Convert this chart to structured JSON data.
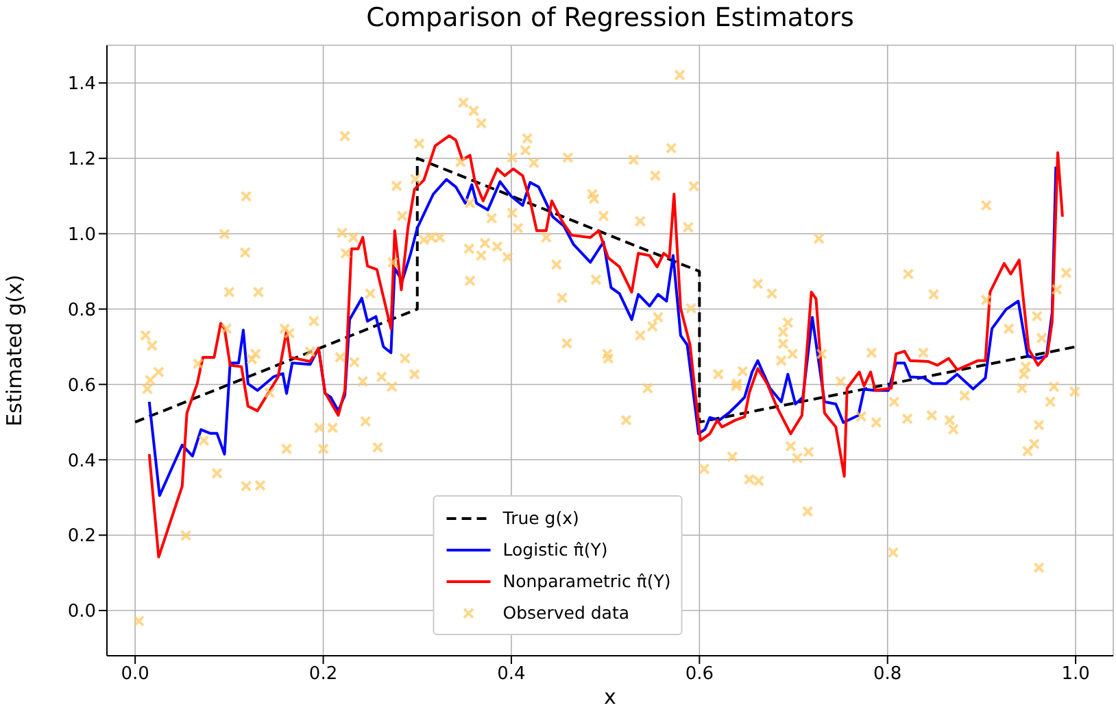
{
  "chart_data": {
    "type": "line",
    "title": "Comparison of Regression Estimators",
    "xlabel": "x",
    "ylabel": "Estimated g(x)",
    "xlim": [
      -0.03,
      1.04
    ],
    "ylim": [
      -0.12,
      1.5
    ],
    "xticks": [
      {
        "value": 0,
        "label": "0.0"
      },
      0.2,
      0.4,
      0.6,
      0.8,
      {
        "value": 1,
        "label": "1.0"
      }
    ],
    "yticks": [
      {
        "value": 0,
        "label": "0.0"
      },
      0.2,
      0.4,
      0.6,
      0.8,
      {
        "value": 1,
        "label": "1.0"
      },
      1.2,
      1.4
    ],
    "grid": true,
    "legend": "bottom",
    "series": [
      {
        "name": "True g(x)",
        "color": "#000000",
        "line_style": "dashed",
        "marker": "none",
        "x": [
          0,
          0.3,
          0.3,
          0.6,
          0.6,
          1.0
        ],
        "values": [
          0.5,
          0.8,
          1.2,
          0.9,
          0.5,
          0.7
        ]
      },
      {
        "name": "Logistic π̂(Y)",
        "color": "#0000ff",
        "line_style": "solid",
        "marker": "none",
        "x": [
          0.015,
          0.026,
          0.05,
          0.061,
          0.07,
          0.08,
          0.087,
          0.095,
          0.101,
          0.11,
          0.115,
          0.12,
          0.13,
          0.147,
          0.157,
          0.161,
          0.167,
          0.186,
          0.195,
          0.202,
          0.208,
          0.216,
          0.223,
          0.228,
          0.241,
          0.247,
          0.256,
          0.264,
          0.272,
          0.276,
          0.284,
          0.293,
          0.3,
          0.317,
          0.331,
          0.341,
          0.351,
          0.358,
          0.363,
          0.375,
          0.388,
          0.4,
          0.412,
          0.42,
          0.429,
          0.444,
          0.456,
          0.466,
          0.484,
          0.498,
          0.506,
          0.515,
          0.528,
          0.535,
          0.547,
          0.556,
          0.565,
          0.572,
          0.58,
          0.587,
          0.599,
          0.606,
          0.611,
          0.621,
          0.631,
          0.641,
          0.648,
          0.656,
          0.662,
          0.675,
          0.687,
          0.694,
          0.702,
          0.71,
          0.72,
          0.733,
          0.745,
          0.753,
          0.769,
          0.775,
          0.787,
          0.801,
          0.809,
          0.818,
          0.824,
          0.838,
          0.848,
          0.862,
          0.874,
          0.891,
          0.904,
          0.911,
          0.926,
          0.939,
          0.949,
          0.96,
          0.969,
          0.975,
          0.979
        ],
        "values": [
          0.554,
          0.305,
          0.439,
          0.41,
          0.48,
          0.47,
          0.47,
          0.415,
          0.657,
          0.657,
          0.744,
          0.602,
          0.584,
          0.62,
          0.629,
          0.576,
          0.657,
          0.653,
          0.696,
          0.576,
          0.566,
          0.53,
          0.572,
          0.772,
          0.829,
          0.768,
          0.78,
          0.7,
          0.684,
          0.908,
          0.875,
          0.948,
          1.015,
          1.105,
          1.144,
          1.124,
          1.081,
          1.13,
          1.081,
          1.063,
          1.138,
          1.099,
          1.075,
          1.136,
          1.124,
          1.045,
          1.02,
          0.972,
          0.924,
          0.978,
          0.857,
          0.841,
          0.772,
          0.839,
          0.808,
          0.839,
          0.821,
          0.942,
          0.73,
          0.705,
          0.469,
          0.481,
          0.512,
          0.505,
          0.524,
          0.548,
          0.566,
          0.633,
          0.663,
          0.59,
          0.554,
          0.627,
          0.548,
          0.566,
          0.778,
          0.554,
          0.548,
          0.499,
          0.518,
          0.587,
          0.584,
          0.584,
          0.657,
          0.657,
          0.62,
          0.618,
          0.602,
          0.602,
          0.627,
          0.588,
          0.617,
          0.748,
          0.799,
          0.821,
          0.675,
          0.669,
          0.675,
          0.79,
          1.178
        ]
      },
      {
        "name": "Nonparametric π̂(Y)",
        "color": "#ff0000",
        "line_style": "solid",
        "marker": "none",
        "x": [
          0.015,
          0.025,
          0.05,
          0.055,
          0.066,
          0.072,
          0.084,
          0.091,
          0.095,
          0.101,
          0.113,
          0.12,
          0.13,
          0.152,
          0.161,
          0.165,
          0.186,
          0.195,
          0.202,
          0.216,
          0.223,
          0.23,
          0.237,
          0.242,
          0.247,
          0.257,
          0.272,
          0.276,
          0.283,
          0.29,
          0.297,
          0.307,
          0.319,
          0.334,
          0.341,
          0.348,
          0.356,
          0.361,
          0.37,
          0.385,
          0.393,
          0.402,
          0.412,
          0.42,
          0.427,
          0.437,
          0.443,
          0.454,
          0.464,
          0.484,
          0.493,
          0.503,
          0.515,
          0.528,
          0.535,
          0.547,
          0.555,
          0.562,
          0.568,
          0.573,
          0.58,
          0.59,
          0.601,
          0.611,
          0.619,
          0.624,
          0.638,
          0.648,
          0.653,
          0.662,
          0.672,
          0.682,
          0.697,
          0.709,
          0.719,
          0.724,
          0.733,
          0.745,
          0.754,
          0.757,
          0.77,
          0.775,
          0.782,
          0.787,
          0.804,
          0.809,
          0.818,
          0.824,
          0.843,
          0.853,
          0.865,
          0.874,
          0.896,
          0.904,
          0.909,
          0.924,
          0.931,
          0.94,
          0.95,
          0.96,
          0.97,
          0.975,
          0.981,
          0.986
        ],
        "values": [
          0.415,
          0.142,
          0.33,
          0.524,
          0.602,
          0.672,
          0.672,
          0.762,
          0.748,
          0.651,
          0.647,
          0.542,
          0.53,
          0.62,
          0.742,
          0.672,
          0.661,
          0.696,
          0.578,
          0.518,
          0.584,
          0.96,
          0.96,
          0.99,
          0.914,
          0.905,
          0.748,
          1.008,
          0.851,
          1.015,
          1.118,
          1.142,
          1.233,
          1.26,
          1.248,
          1.196,
          1.208,
          1.142,
          1.087,
          1.172,
          1.154,
          1.172,
          1.154,
          1.087,
          1.008,
          1.008,
          1.087,
          1.033,
          0.996,
          0.99,
          1.008,
          0.936,
          0.912,
          0.845,
          0.948,
          0.942,
          0.912,
          0.948,
          0.936,
          1.105,
          0.802,
          0.705,
          0.451,
          0.469,
          0.505,
          0.487,
          0.505,
          0.514,
          0.578,
          0.642,
          0.602,
          0.542,
          0.469,
          0.518,
          0.845,
          0.827,
          0.524,
          0.487,
          0.356,
          0.59,
          0.633,
          0.596,
          0.633,
          0.584,
          0.59,
          0.681,
          0.688,
          0.663,
          0.661,
          0.651,
          0.669,
          0.639,
          0.663,
          0.663,
          0.845,
          0.921,
          0.893,
          0.93,
          0.694,
          0.651,
          0.681,
          0.766,
          1.215,
          1.045
        ]
      },
      {
        "name": "Observed data",
        "type": "scatter",
        "color": "#ffc966",
        "marker": "cross",
        "x": [
          0.004,
          0.011,
          0.018,
          0.025,
          0.016,
          0.013,
          0.054,
          0.067,
          0.073,
          0.087,
          0.095,
          0.097,
          0.1,
          0.118,
          0.117,
          0.118,
          0.128,
          0.124,
          0.131,
          0.133,
          0.143,
          0.159,
          0.164,
          0.161,
          0.19,
          0.186,
          0.196,
          0.2,
          0.21,
          0.218,
          0.223,
          0.22,
          0.224,
          0.232,
          0.233,
          0.242,
          0.245,
          0.25,
          0.258,
          0.262,
          0.273,
          0.274,
          0.278,
          0.284,
          0.287,
          0.297,
          0.298,
          0.302,
          0.307,
          0.315,
          0.324,
          0.349,
          0.36,
          0.368,
          0.346,
          0.356,
          0.379,
          0.356,
          0.355,
          0.368,
          0.372,
          0.385,
          0.396,
          0.401,
          0.401,
          0.407,
          0.415,
          0.417,
          0.424,
          0.437,
          0.448,
          0.454,
          0.459,
          0.46,
          0.486,
          0.488,
          0.498,
          0.49,
          0.502,
          0.503,
          0.522,
          0.53,
          0.537,
          0.537,
          0.545,
          0.55,
          0.553,
          0.556,
          0.57,
          0.579,
          0.588,
          0.594,
          0.591,
          0.605,
          0.62,
          0.635,
          0.64,
          0.653,
          0.639,
          0.646,
          0.663,
          0.662,
          0.677,
          0.687,
          0.689,
          0.689,
          0.694,
          0.699,
          0.697,
          0.704,
          0.716,
          0.715,
          0.727,
          0.73,
          0.75,
          0.772,
          0.783,
          0.788,
          0.806,
          0.807,
          0.821,
          0.822,
          0.838,
          0.847,
          0.849,
          0.866,
          0.87,
          0.882,
          0.905,
          0.905,
          0.929,
          0.943,
          0.945,
          0.947,
          0.949,
          0.956,
          0.959,
          0.961,
          0.961,
          0.964,
          0.973,
          0.977,
          0.98,
          0.99,
          0.999
        ],
        "values": [
          -0.028,
          0.73,
          0.703,
          0.633,
          0.611,
          0.588,
          0.199,
          0.655,
          0.451,
          0.364,
          0.999,
          0.748,
          0.845,
          1.099,
          0.95,
          0.33,
          0.681,
          0.667,
          0.845,
          0.332,
          0.578,
          0.748,
          0.736,
          0.429,
          0.768,
          0.687,
          0.485,
          0.429,
          0.485,
          0.672,
          1.259,
          1.002,
          0.948,
          0.99,
          0.659,
          0.608,
          0.502,
          0.841,
          0.433,
          0.62,
          0.594,
          0.924,
          1.127,
          1.047,
          0.669,
          0.627,
          1.145,
          1.239,
          0.984,
          0.99,
          0.99,
          1.348,
          1.326,
          1.293,
          1.19,
          1.081,
          1.041,
          0.875,
          0.96,
          0.942,
          0.975,
          0.966,
          0.938,
          1.055,
          1.202,
          1.015,
          1.221,
          1.253,
          1.188,
          0.99,
          0.918,
          0.83,
          0.709,
          1.202,
          1.105,
          1.093,
          1.047,
          0.878,
          0.681,
          0.669,
          0.505,
          1.196,
          1.033,
          0.73,
          0.59,
          0.754,
          1.154,
          0.778,
          1.227,
          1.421,
          1.017,
          1.126,
          0.802,
          0.376,
          0.627,
          0.408,
          0.602,
          0.348,
          0.596,
          0.635,
          0.344,
          0.867,
          0.841,
          0.663,
          0.739,
          0.708,
          0.764,
          0.681,
          0.436,
          0.405,
          0.421,
          0.263,
          0.987,
          0.681,
          0.608,
          0.515,
          0.684,
          0.499,
          0.154,
          0.554,
          0.509,
          0.893,
          0.684,
          0.518,
          0.839,
          0.505,
          0.481,
          0.57,
          1.075,
          0.824,
          0.748,
          0.59,
          0.627,
          0.647,
          0.423,
          0.442,
          0.781,
          0.114,
          0.492,
          0.723,
          0.554,
          0.594,
          0.852,
          0.896,
          0.581
        ]
      }
    ]
  }
}
